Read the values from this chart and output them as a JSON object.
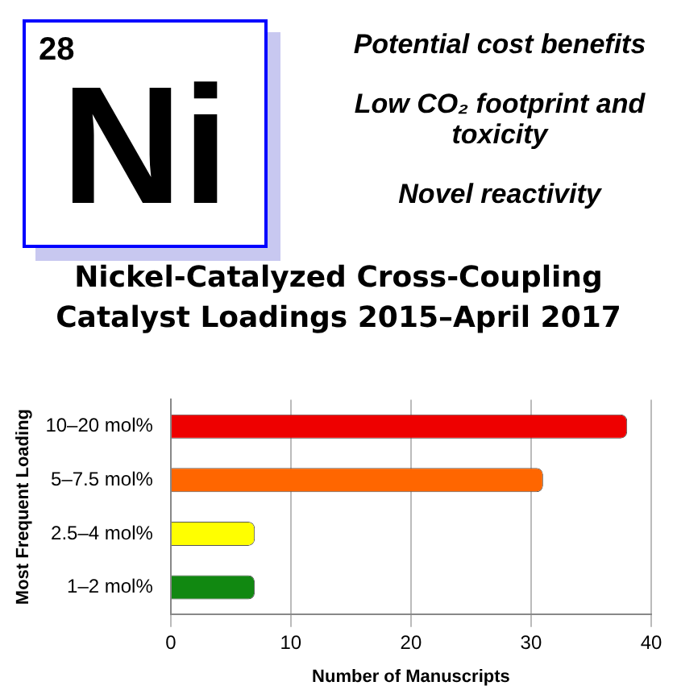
{
  "chart_data": {
    "type": "bar",
    "orientation": "horizontal",
    "title": "Nickel-Catalyzed Cross-Coupling Catalyst Loadings 2015–April 2017",
    "xlabel": "Number of Manuscripts",
    "ylabel": "Most Frequent Loading",
    "categories": [
      "10–20 mol%",
      "5–7.5 mol%",
      "2.5–4 mol%",
      "1–2 mol%"
    ],
    "values": [
      38,
      31,
      7,
      7
    ],
    "colors": [
      "#ee0000",
      "#ff6600",
      "#ffff00",
      "#118811"
    ],
    "xlim": [
      0,
      40
    ],
    "xticks": [
      0,
      10,
      20,
      30,
      40
    ],
    "grid": "x",
    "legend": false,
    "annotations": [
      "28",
      "Ni",
      "Potential cost benefits",
      "Low CO₂ footprint and toxicity",
      "Novel reactivity"
    ]
  }
}
